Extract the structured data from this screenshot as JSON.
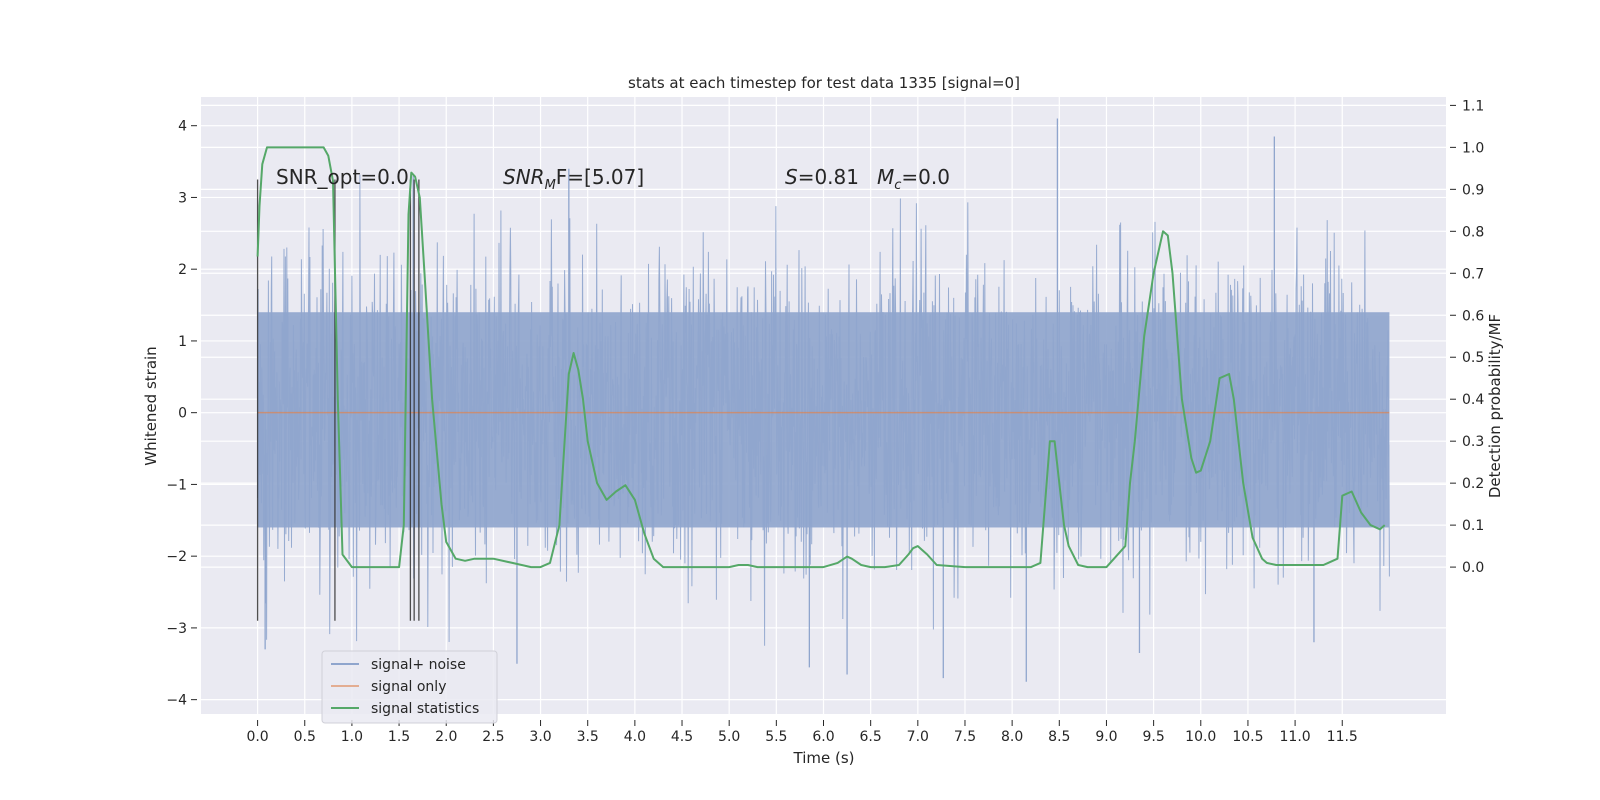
{
  "chart_data": {
    "type": "line",
    "title": "stats at each timestep for test data 1335 [signal=0]",
    "xlabel": "Time (s)",
    "ylabel": "Whitened strain",
    "ylabel_right": "Detection probability/MF",
    "xlim": [
      -0.6,
      12.6
    ],
    "ylim": [
      -4.2,
      4.4
    ],
    "ylim_right": [
      -0.35,
      1.12
    ],
    "x_ticks": [
      "0.0",
      "0.5",
      "1.0",
      "1.5",
      "2.0",
      "2.5",
      "3.0",
      "3.5",
      "4.0",
      "4.5",
      "5.0",
      "5.5",
      "6.0",
      "6.5",
      "7.0",
      "7.5",
      "8.0",
      "8.5",
      "9.0",
      "9.5",
      "10.0",
      "10.5",
      "11.0",
      "11.5"
    ],
    "y_ticks": [
      "4",
      "3",
      "2",
      "1",
      "0",
      "−1",
      "−2",
      "−3",
      "−4"
    ],
    "y_ticks_right": [
      "1.1",
      "1.0",
      "0.9",
      "0.8",
      "0.7",
      "0.6",
      "0.5",
      "0.4",
      "0.3",
      "0.2",
      "0.1",
      "0.0"
    ],
    "grid": true,
    "legend_position": "lower-left",
    "colors": {
      "background": "#eaeaf2",
      "grid": "#ffffff",
      "noise": "#8fa5cd",
      "signal": "#dd8452",
      "stats": "#55a868",
      "markers": "#303030"
    },
    "series": [
      {
        "name": "signal+ noise",
        "style": "dense-noise",
        "x_range": [
          0.0,
          12.0
        ],
        "band": [
          -1.6,
          1.4
        ],
        "notable_extremes": [
          {
            "x": 0.08,
            "y": -3.3
          },
          {
            "x": 1.65,
            "y": 3.3
          },
          {
            "x": 2.75,
            "y": -3.5
          },
          {
            "x": 3.3,
            "y": 3.4
          },
          {
            "x": 5.85,
            "y": -3.55
          },
          {
            "x": 6.25,
            "y": -3.65
          },
          {
            "x": 7.27,
            "y": -3.7
          },
          {
            "x": 8.15,
            "y": -3.75
          },
          {
            "x": 8.48,
            "y": 4.1
          },
          {
            "x": 9.35,
            "y": -3.35
          },
          {
            "x": 10.78,
            "y": 3.85
          },
          {
            "x": 11.2,
            "y": -3.2
          }
        ]
      },
      {
        "name": "signal only",
        "x": [
          0.0,
          12.0
        ],
        "y": [
          0.0,
          0.0
        ]
      },
      {
        "name": "signal statistics",
        "axis": "right",
        "x": [
          0.0,
          0.02,
          0.05,
          0.1,
          0.15,
          0.2,
          0.3,
          0.5,
          0.7,
          0.75,
          0.8,
          0.85,
          0.9,
          1.0,
          1.2,
          1.4,
          1.5,
          1.55,
          1.6,
          1.63,
          1.67,
          1.72,
          1.77,
          1.85,
          1.95,
          2.0,
          2.1,
          2.2,
          2.3,
          2.5,
          2.7,
          2.9,
          3.0,
          3.1,
          3.2,
          3.3,
          3.35,
          3.4,
          3.45,
          3.5,
          3.6,
          3.7,
          3.8,
          3.9,
          4.0,
          4.1,
          4.2,
          4.3,
          4.5,
          5.0,
          5.1,
          5.2,
          5.3,
          6.0,
          6.15,
          6.25,
          6.3,
          6.4,
          6.5,
          6.65,
          6.8,
          6.9,
          6.95,
          7.0,
          7.1,
          7.2,
          7.5,
          8.0,
          8.2,
          8.3,
          8.4,
          8.45,
          8.5,
          8.55,
          8.6,
          8.7,
          8.8,
          8.9,
          9.0,
          9.2,
          9.25,
          9.3,
          9.4,
          9.5,
          9.6,
          9.65,
          9.7,
          9.8,
          9.9,
          9.95,
          10.0,
          10.1,
          10.2,
          10.3,
          10.35,
          10.45,
          10.55,
          10.65,
          10.7,
          10.8,
          11.0,
          11.3,
          11.35,
          11.45,
          11.5,
          11.6,
          11.7,
          11.8,
          11.9,
          11.95
        ],
        "y": [
          0.74,
          0.86,
          0.96,
          1.0,
          1.0,
          1.0,
          1.0,
          1.0,
          1.0,
          0.98,
          0.92,
          0.4,
          0.03,
          0.0,
          0.0,
          0.0,
          0.0,
          0.1,
          0.84,
          0.94,
          0.93,
          0.88,
          0.7,
          0.4,
          0.15,
          0.06,
          0.02,
          0.015,
          0.02,
          0.02,
          0.01,
          0.0,
          0.0,
          0.01,
          0.1,
          0.46,
          0.51,
          0.47,
          0.4,
          0.3,
          0.2,
          0.16,
          0.18,
          0.195,
          0.16,
          0.08,
          0.02,
          0.0,
          0.0,
          0.0,
          0.005,
          0.005,
          0.0,
          0.0,
          0.01,
          0.025,
          0.02,
          0.005,
          0.0,
          0.0,
          0.005,
          0.03,
          0.045,
          0.05,
          0.03,
          0.005,
          0.0,
          0.0,
          0.0,
          0.01,
          0.3,
          0.3,
          0.2,
          0.1,
          0.05,
          0.005,
          0.0,
          0.0,
          0.0,
          0.05,
          0.2,
          0.3,
          0.55,
          0.7,
          0.8,
          0.79,
          0.7,
          0.4,
          0.26,
          0.225,
          0.23,
          0.3,
          0.45,
          0.46,
          0.4,
          0.2,
          0.07,
          0.02,
          0.01,
          0.005,
          0.005,
          0.005,
          0.01,
          0.02,
          0.17,
          0.18,
          0.13,
          0.1,
          0.09,
          0.1
        ]
      }
    ],
    "vertical_markers": [
      {
        "x": 0.0,
        "y_range": [
          -2.9,
          3.25
        ]
      },
      {
        "x": 0.82,
        "y_range": [
          -2.9,
          3.25
        ]
      },
      {
        "x": 1.62,
        "y_range": [
          -2.9,
          3.25
        ]
      },
      {
        "x": 1.66,
        "y_range": [
          -2.9,
          3.25
        ]
      },
      {
        "x": 1.71,
        "y_range": [
          -2.9,
          3.25
        ]
      }
    ],
    "annotations": [
      "SNR_opt=0.0",
      "SNR_MF=[5.07]",
      "S=0.81   M_c=0.0"
    ]
  },
  "annotations_display": {
    "snr_opt": "SNR_opt=0.0",
    "snr_mf_base": "SNR",
    "snr_mf_sub": "M",
    "snr_mf_tail": "F=[5.07]",
    "s_label": "S",
    "s_value": "=0.81",
    "mc_base": "M",
    "mc_sub": "c",
    "mc_value": "=0.0"
  }
}
